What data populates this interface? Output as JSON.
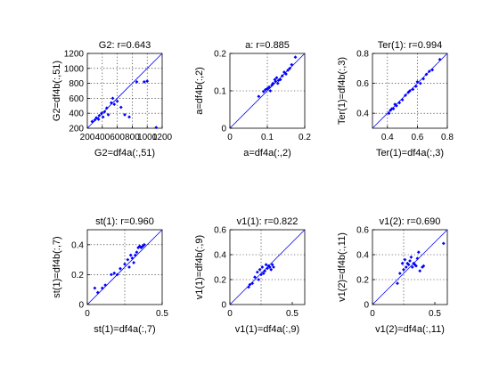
{
  "figure": {
    "background": "#ffffff",
    "marker_color": "#0000ff",
    "line_color": "#0000ff"
  },
  "chart_data": [
    {
      "type": "scatter",
      "title": "G2: r=0.643",
      "xlabel": "G2=df4a(:,51)",
      "ylabel": "G2=df4b(:,51)",
      "xlim": [
        200,
        1200
      ],
      "ylim": [
        200,
        1200
      ],
      "xticks": [
        200,
        400,
        600,
        800,
        1000,
        1200
      ],
      "yticks": [
        200,
        400,
        600,
        800,
        1000,
        1200
      ],
      "grid_x": [
        400,
        600,
        800,
        1000
      ],
      "grid_y": [
        400,
        600,
        800,
        1000
      ],
      "reference_line": "y=x",
      "points": [
        [
          265,
          290
        ],
        [
          300,
          310
        ],
        [
          320,
          340
        ],
        [
          350,
          320
        ],
        [
          360,
          370
        ],
        [
          390,
          400
        ],
        [
          410,
          350
        ],
        [
          430,
          420
        ],
        [
          460,
          470
        ],
        [
          480,
          380
        ],
        [
          520,
          540
        ],
        [
          540,
          600
        ],
        [
          560,
          520
        ],
        [
          600,
          560
        ],
        [
          650,
          480
        ],
        [
          700,
          380
        ],
        [
          760,
          350
        ],
        [
          860,
          820
        ],
        [
          960,
          820
        ],
        [
          1000,
          830
        ],
        [
          1120,
          210
        ]
      ]
    },
    {
      "type": "scatter",
      "title": "a: r=0.885",
      "xlabel": "a=df4a(:,2)",
      "ylabel": "a=df4b(:,2)",
      "xlim": [
        0,
        0.2
      ],
      "ylim": [
        0,
        0.2
      ],
      "xticks": [
        0,
        0.1,
        0.2
      ],
      "yticks": [
        0,
        0.1,
        0.2
      ],
      "grid_x": [
        0.1
      ],
      "grid_y": [
        0.1
      ],
      "reference_line": "y=x",
      "points": [
        [
          0.077,
          0.085
        ],
        [
          0.09,
          0.098
        ],
        [
          0.095,
          0.103
        ],
        [
          0.1,
          0.106
        ],
        [
          0.105,
          0.11
        ],
        [
          0.108,
          0.1
        ],
        [
          0.112,
          0.115
        ],
        [
          0.115,
          0.12
        ],
        [
          0.12,
          0.13
        ],
        [
          0.122,
          0.125
        ],
        [
          0.125,
          0.135
        ],
        [
          0.128,
          0.12
        ],
        [
          0.13,
          0.128
        ],
        [
          0.135,
          0.13
        ],
        [
          0.14,
          0.14
        ],
        [
          0.145,
          0.15
        ],
        [
          0.15,
          0.145
        ],
        [
          0.155,
          0.155
        ],
        [
          0.16,
          0.16
        ],
        [
          0.165,
          0.17
        ],
        [
          0.175,
          0.19
        ]
      ]
    },
    {
      "type": "scatter",
      "title": "Ter(1): r=0.994",
      "xlabel": "Ter(1)=df4a(:,3)",
      "ylabel": "Ter(1)=df4b(:,3)",
      "xlim": [
        0.3,
        0.8
      ],
      "ylim": [
        0.3,
        0.8
      ],
      "xticks": [
        0.4,
        0.6,
        0.8
      ],
      "yticks": [
        0.4,
        0.6,
        0.8
      ],
      "grid_x": [
        0.4,
        0.6
      ],
      "grid_y": [
        0.4,
        0.6
      ],
      "reference_line": "y=x",
      "points": [
        [
          0.41,
          0.4
        ],
        [
          0.42,
          0.42
        ],
        [
          0.43,
          0.43
        ],
        [
          0.44,
          0.43
        ],
        [
          0.45,
          0.46
        ],
        [
          0.46,
          0.45
        ],
        [
          0.48,
          0.47
        ],
        [
          0.5,
          0.49
        ],
        [
          0.52,
          0.52
        ],
        [
          0.54,
          0.54
        ],
        [
          0.55,
          0.55
        ],
        [
          0.57,
          0.56
        ],
        [
          0.59,
          0.58
        ],
        [
          0.6,
          0.61
        ],
        [
          0.62,
          0.6
        ],
        [
          0.64,
          0.63
        ],
        [
          0.66,
          0.66
        ],
        [
          0.68,
          0.68
        ],
        [
          0.7,
          0.69
        ],
        [
          0.75,
          0.76
        ]
      ]
    },
    {
      "type": "scatter",
      "title": "st(1): r=0.960",
      "xlabel": "st(1)=df4a(:,7)",
      "ylabel": "st(1)=df4b(:,7)",
      "xlim": [
        0,
        0.5
      ],
      "ylim": [
        0,
        0.5
      ],
      "xticks": [
        0,
        0.5
      ],
      "yticks": [
        0,
        0.2,
        0.4
      ],
      "grid_x": [
        0.25
      ],
      "grid_y": [
        0.2,
        0.4
      ],
      "reference_line": "y=x",
      "points": [
        [
          0.05,
          0.11
        ],
        [
          0.07,
          0.08
        ],
        [
          0.1,
          0.11
        ],
        [
          0.12,
          0.13
        ],
        [
          0.16,
          0.2
        ],
        [
          0.18,
          0.21
        ],
        [
          0.2,
          0.2
        ],
        [
          0.22,
          0.24
        ],
        [
          0.25,
          0.27
        ],
        [
          0.27,
          0.3
        ],
        [
          0.28,
          0.25
        ],
        [
          0.29,
          0.33
        ],
        [
          0.3,
          0.31
        ],
        [
          0.31,
          0.28
        ],
        [
          0.32,
          0.33
        ],
        [
          0.33,
          0.35
        ],
        [
          0.34,
          0.38
        ],
        [
          0.35,
          0.39
        ],
        [
          0.36,
          0.38
        ],
        [
          0.37,
          0.39
        ],
        [
          0.38,
          0.4
        ]
      ]
    },
    {
      "type": "scatter",
      "title": "v1(1): r=0.822",
      "xlabel": "v1(1)=df4a(:,9)",
      "ylabel": "v1(1)=df4b(:,9)",
      "xlim": [
        0,
        0.6
      ],
      "ylim": [
        0,
        0.6
      ],
      "xticks": [
        0,
        0.5
      ],
      "yticks": [
        0,
        0.2,
        0.4,
        0.6
      ],
      "grid_x": [
        0.25
      ],
      "grid_y": [
        0.2,
        0.4
      ],
      "reference_line": "y=x",
      "points": [
        [
          0.15,
          0.14
        ],
        [
          0.16,
          0.16
        ],
        [
          0.18,
          0.17
        ],
        [
          0.2,
          0.22
        ],
        [
          0.22,
          0.26
        ],
        [
          0.23,
          0.2
        ],
        [
          0.24,
          0.28
        ],
        [
          0.25,
          0.24
        ],
        [
          0.26,
          0.3
        ],
        [
          0.27,
          0.25
        ],
        [
          0.28,
          0.27
        ],
        [
          0.29,
          0.32
        ],
        [
          0.3,
          0.29
        ],
        [
          0.31,
          0.31
        ],
        [
          0.32,
          0.3
        ],
        [
          0.33,
          0.28
        ],
        [
          0.34,
          0.32
        ],
        [
          0.35,
          0.3
        ]
      ]
    },
    {
      "type": "scatter",
      "title": "v1(2): r=0.690",
      "xlabel": "v1(2)=df4a(:,11)",
      "ylabel": "v1(2)=df4b(:,11)",
      "xlim": [
        0,
        0.6
      ],
      "ylim": [
        0,
        0.6
      ],
      "xticks": [
        0,
        0.5
      ],
      "yticks": [
        0,
        0.2,
        0.4,
        0.6
      ],
      "grid_x": [
        0.25
      ],
      "grid_y": [
        0.2,
        0.4
      ],
      "reference_line": "y=x",
      "points": [
        [
          0.2,
          0.17
        ],
        [
          0.22,
          0.25
        ],
        [
          0.24,
          0.33
        ],
        [
          0.25,
          0.28
        ],
        [
          0.26,
          0.36
        ],
        [
          0.27,
          0.3
        ],
        [
          0.28,
          0.33
        ],
        [
          0.29,
          0.32
        ],
        [
          0.3,
          0.35
        ],
        [
          0.31,
          0.38
        ],
        [
          0.32,
          0.3
        ],
        [
          0.33,
          0.33
        ],
        [
          0.34,
          0.32
        ],
        [
          0.35,
          0.31
        ],
        [
          0.36,
          0.37
        ],
        [
          0.37,
          0.42
        ],
        [
          0.38,
          0.27
        ],
        [
          0.4,
          0.3
        ],
        [
          0.41,
          0.31
        ],
        [
          0.57,
          0.49
        ]
      ]
    }
  ]
}
